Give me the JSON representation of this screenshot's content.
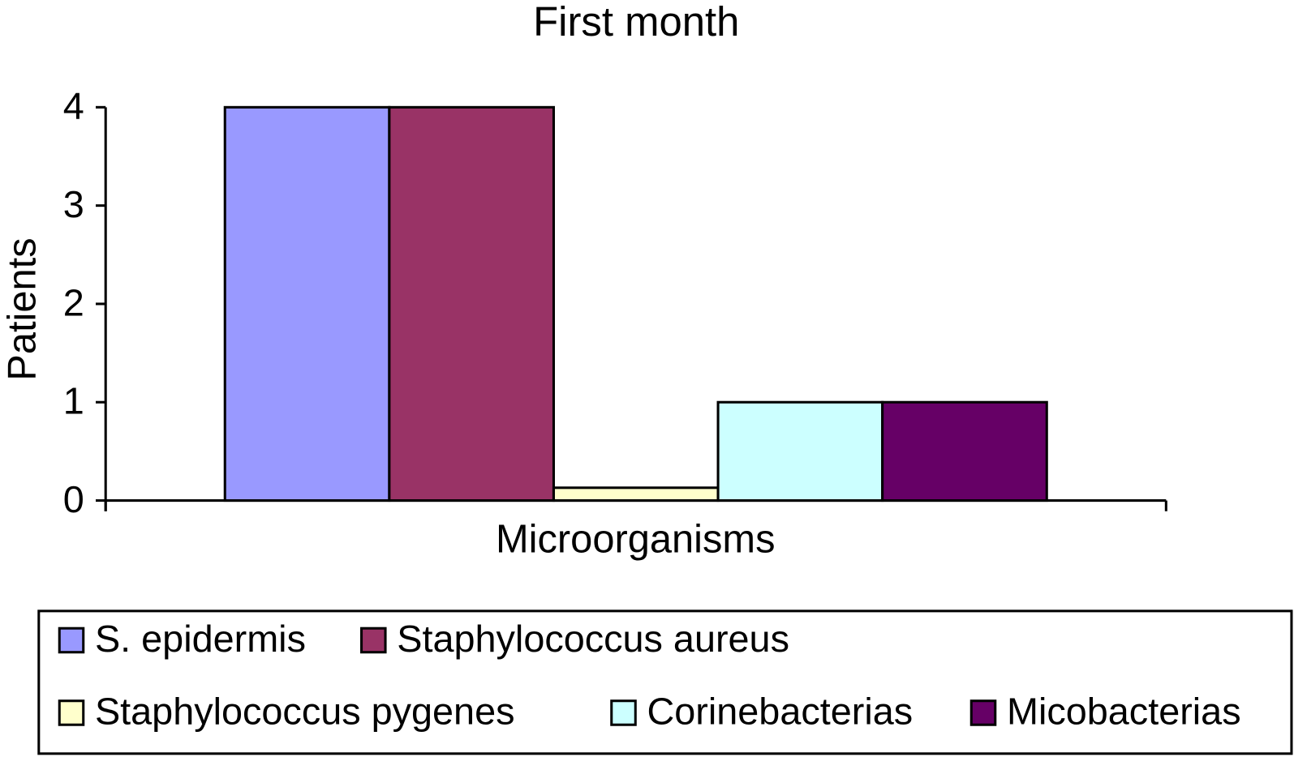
{
  "chart_data": {
    "type": "bar",
    "title": "First month",
    "x_label": "Microorganisms",
    "y_label": "Patients",
    "categories": [
      null
    ],
    "series": [
      {
        "name": "S. epidermis",
        "color": "#9999ff",
        "values": [
          4
        ]
      },
      {
        "name": "Staphylococcus aureus",
        "color": "#993366",
        "values": [
          4
        ]
      },
      {
        "name": "Staphylococcus pygenes",
        "color": "#ffffcc",
        "values": [
          0.13
        ]
      },
      {
        "name": "Corinebacterias",
        "color": "#ccffff",
        "values": [
          1
        ]
      },
      {
        "name": "Micobacterias",
        "color": "#660066",
        "values": [
          1
        ]
      }
    ],
    "ylim": [
      0,
      4
    ],
    "yticks": [
      0,
      1,
      2,
      3,
      4
    ],
    "grid": false,
    "legend": "bottom"
  }
}
